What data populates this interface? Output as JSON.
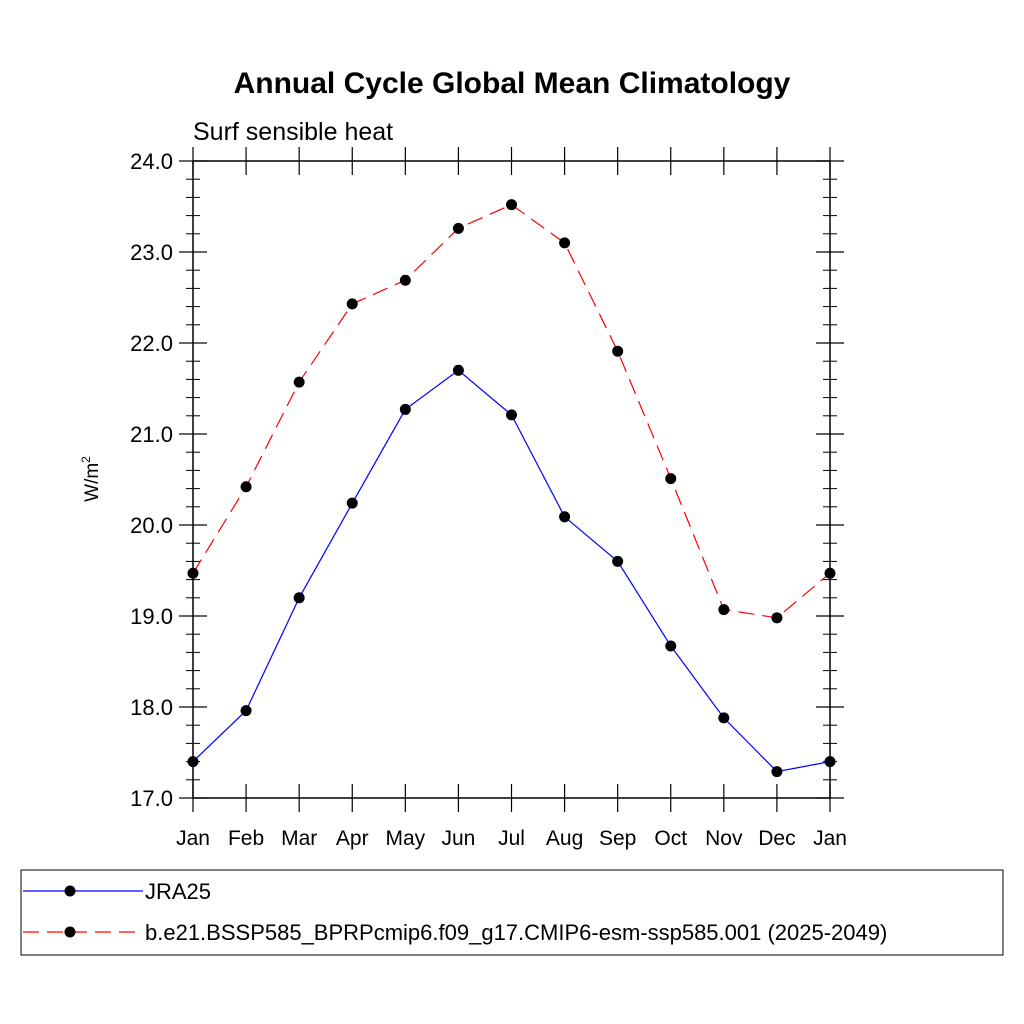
{
  "chart_data": {
    "type": "line",
    "title": "Annual Cycle Global Mean Climatology",
    "subtitle": "Surf sensible heat",
    "ylabel": "W/m",
    "ylabel_sup": "2",
    "ylim": [
      17.0,
      24.0
    ],
    "yticks": [
      "17.0",
      "18.0",
      "19.0",
      "20.0",
      "21.0",
      "22.0",
      "23.0",
      "24.0"
    ],
    "categories": [
      "Jan",
      "Feb",
      "Mar",
      "Apr",
      "May",
      "Jun",
      "Jul",
      "Aug",
      "Sep",
      "Oct",
      "Nov",
      "Dec",
      "Jan"
    ],
    "series": [
      {
        "name": "JRA25",
        "color": "#0000ff",
        "dash": "solid",
        "values": [
          17.4,
          17.96,
          19.2,
          20.24,
          21.27,
          21.7,
          21.21,
          20.09,
          19.6,
          18.67,
          17.88,
          17.29,
          17.4
        ]
      },
      {
        "name": "b.e21.BSSP585_BPRPcmip6.f09_g17.CMIP6-esm-ssp585.001 (2025-2049)",
        "color": "#ff0000",
        "dash": "dashed",
        "values": [
          19.47,
          20.42,
          21.57,
          22.43,
          22.69,
          23.26,
          23.52,
          23.1,
          21.91,
          20.51,
          19.07,
          18.98,
          19.47
        ]
      }
    ]
  }
}
